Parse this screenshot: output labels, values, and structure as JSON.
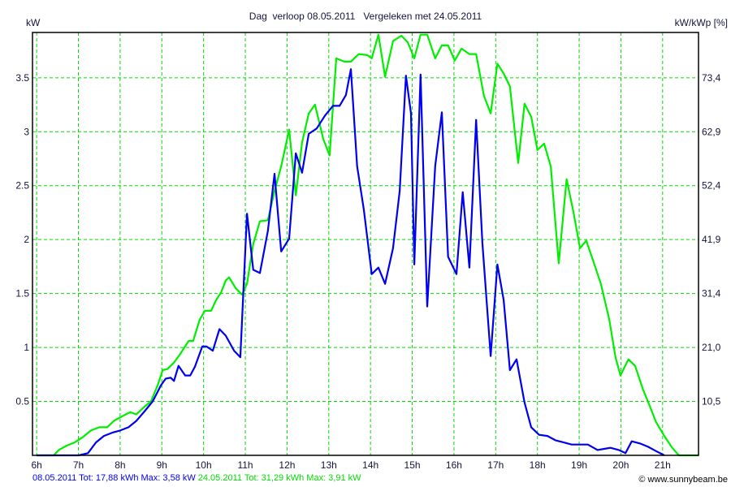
{
  "chart_data": {
    "type": "line",
    "title": "Dag  verloop 08.05.2011   Vergeleken met 24.05.2011",
    "ylabel": "kW",
    "y2label": "kW/kWp [%]",
    "xlim": [
      5.9,
      21.86
    ],
    "ylim": [
      0,
      3.92
    ],
    "grid": true,
    "x_ticks": [
      "6h",
      "7h",
      "8h",
      "9h",
      "10h",
      "11h",
      "12h",
      "13h",
      "14h",
      "15h",
      "16h",
      "17h",
      "18h",
      "19h",
      "20h",
      "21h"
    ],
    "x_tick_values": [
      6,
      7,
      8,
      9,
      10,
      11,
      12,
      13,
      14,
      15,
      16,
      17,
      18,
      19,
      20,
      21
    ],
    "y_ticks": [
      "0.5",
      "1",
      "1.5",
      "2",
      "2.5",
      "3",
      "3.5"
    ],
    "y_tick_values": [
      0.5,
      1,
      1.5,
      2,
      2.5,
      3,
      3.5
    ],
    "y2_ticks": [
      "10,5",
      "21,0",
      "31,4",
      "41,9",
      "52,4",
      "62,9",
      "73,4"
    ],
    "colors": {
      "series1": "#0000ee",
      "series2": "#00ee00",
      "grid": "#00dd00"
    },
    "series": [
      {
        "name": "08.05.2011",
        "color": "#0000ee",
        "x": [
          6.0,
          7.01,
          7.23,
          7.42,
          7.61,
          7.81,
          8.0,
          8.2,
          8.39,
          8.59,
          8.78,
          8.9,
          8.98,
          9.09,
          9.21,
          9.29,
          9.4,
          9.56,
          9.68,
          9.79,
          9.97,
          10.07,
          10.22,
          10.38,
          10.53,
          10.73,
          10.88,
          11.04,
          11.19,
          11.35,
          11.54,
          11.7,
          11.86,
          12.05,
          12.21,
          12.36,
          12.52,
          12.71,
          12.91,
          13.1,
          13.26,
          13.41,
          13.53,
          13.68,
          13.84,
          14.03,
          14.19,
          14.35,
          14.54,
          14.7,
          14.85,
          14.97,
          15.05,
          15.2,
          15.36,
          15.55,
          15.71,
          15.86,
          16.06,
          16.21,
          16.37,
          16.53,
          16.68,
          16.88,
          17.04,
          17.19,
          17.34,
          17.5,
          17.69,
          17.85,
          18.04,
          18.24,
          18.43,
          18.63,
          18.82,
          19.02,
          19.21,
          19.44,
          19.6,
          19.75,
          19.95,
          20.11,
          20.26,
          20.46,
          20.65,
          20.84,
          21.04
        ],
        "y": [
          0,
          0,
          0.02,
          0.12,
          0.18,
          0.21,
          0.23,
          0.26,
          0.32,
          0.41,
          0.5,
          0.59,
          0.65,
          0.71,
          0.72,
          0.69,
          0.83,
          0.74,
          0.74,
          0.82,
          1.01,
          1.01,
          0.97,
          1.17,
          1.11,
          0.97,
          0.91,
          2.24,
          1.72,
          1.69,
          2.08,
          2.61,
          1.89,
          2.01,
          2.8,
          2.62,
          2.98,
          3.03,
          3.15,
          3.24,
          3.24,
          3.34,
          3.58,
          2.68,
          2.28,
          1.68,
          1.74,
          1.59,
          1.92,
          2.45,
          3.52,
          3.17,
          1.77,
          3.53,
          1.38,
          2.68,
          3.18,
          1.84,
          1.68,
          2.44,
          1.74,
          3.11,
          1.97,
          0.92,
          1.77,
          1.44,
          0.79,
          0.89,
          0.49,
          0.26,
          0.19,
          0.18,
          0.14,
          0.12,
          0.1,
          0.1,
          0.1,
          0.05,
          0.06,
          0.07,
          0.05,
          0.02,
          0.13,
          0.11,
          0.08,
          0.04,
          0.0
        ]
      },
      {
        "name": "24.05.2011",
        "color": "#00ee00",
        "x": [
          6.0,
          6.41,
          6.53,
          6.72,
          6.91,
          7.11,
          7.3,
          7.5,
          7.69,
          7.85,
          8.04,
          8.24,
          8.39,
          8.55,
          8.74,
          8.9,
          9.02,
          9.13,
          9.29,
          9.44,
          9.64,
          9.75,
          9.91,
          10.03,
          10.18,
          10.3,
          10.42,
          10.53,
          10.61,
          10.77,
          10.92,
          11.04,
          11.19,
          11.35,
          11.54,
          11.7,
          11.86,
          12.05,
          12.21,
          12.36,
          12.52,
          12.67,
          12.87,
          13.02,
          13.18,
          13.37,
          13.53,
          13.72,
          13.92,
          14.03,
          14.19,
          14.35,
          14.54,
          14.74,
          14.89,
          15.05,
          15.2,
          15.36,
          15.55,
          15.71,
          15.86,
          16.02,
          16.18,
          16.37,
          16.53,
          16.72,
          16.88,
          17.04,
          17.19,
          17.34,
          17.54,
          17.69,
          17.85,
          18.0,
          18.16,
          18.32,
          18.51,
          18.7,
          18.86,
          19.02,
          19.17,
          19.33,
          19.52,
          19.72,
          19.87,
          19.99,
          20.18,
          20.34,
          20.53,
          20.69,
          20.84,
          21.04,
          21.23,
          21.39,
          21.86
        ],
        "y": [
          0,
          0,
          0.05,
          0.09,
          0.12,
          0.17,
          0.23,
          0.26,
          0.26,
          0.32,
          0.36,
          0.4,
          0.38,
          0.44,
          0.5,
          0.65,
          0.79,
          0.8,
          0.86,
          0.94,
          1.06,
          1.06,
          1.26,
          1.34,
          1.34,
          1.44,
          1.51,
          1.62,
          1.65,
          1.55,
          1.49,
          1.59,
          1.96,
          2.17,
          2.18,
          2.45,
          2.68,
          3.02,
          2.41,
          2.9,
          3.17,
          3.25,
          2.93,
          2.78,
          3.68,
          3.65,
          3.65,
          3.72,
          3.71,
          3.68,
          3.9,
          3.51,
          3.84,
          3.89,
          3.83,
          3.68,
          3.9,
          3.9,
          3.68,
          3.8,
          3.8,
          3.66,
          3.77,
          3.72,
          3.72,
          3.33,
          3.17,
          3.63,
          3.54,
          3.42,
          2.71,
          3.26,
          3.14,
          2.83,
          2.89,
          2.68,
          1.78,
          2.56,
          2.26,
          1.92,
          1.99,
          1.81,
          1.59,
          1.26,
          0.91,
          0.74,
          0.89,
          0.83,
          0.61,
          0.46,
          0.31,
          0.18,
          0.07,
          0,
          0
        ]
      }
    ]
  },
  "footer": {
    "series1_summary": "08.05.2011 Tot: 17,88 kWh Max: 3,58 kW",
    "series2_summary": "24.05.2011 Tot: 31,29 kWh Max: 3,91 kW",
    "copyright": "© www.sunnybeam.be"
  }
}
